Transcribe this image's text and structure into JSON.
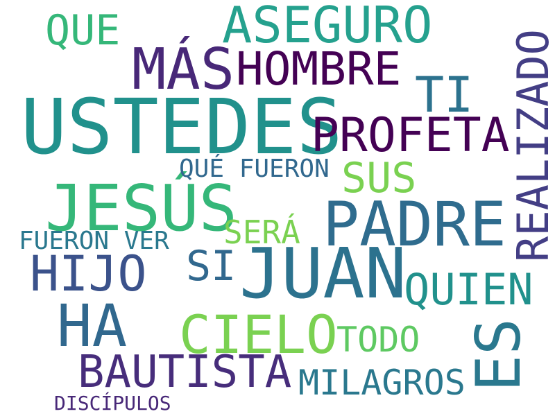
{
  "words": [
    {
      "text": "USTEDES",
      "color": "#21918c"
    },
    {
      "text": "JUAN",
      "color": "#2c728e"
    },
    {
      "text": "JESÚS",
      "color": "#35b779"
    },
    {
      "text": "PADRE",
      "color": "#2f6c8e"
    },
    {
      "text": "ES",
      "color": "#2a788e"
    },
    {
      "text": "MÁS",
      "color": "#482878"
    },
    {
      "text": "ASEGURO",
      "color": "#25a18e"
    },
    {
      "text": "HA",
      "color": "#31688e"
    },
    {
      "text": "CIELO",
      "color": "#7ad151"
    },
    {
      "text": "HOMBRE",
      "color": "#440154"
    },
    {
      "text": "REALIZADO",
      "color": "#433e85"
    },
    {
      "text": "PROFETA",
      "color": "#440154"
    },
    {
      "text": "HIJO",
      "color": "#3b528b"
    },
    {
      "text": "TI",
      "color": "#2c728e"
    },
    {
      "text": "BAUTISTA",
      "color": "#472d7b"
    },
    {
      "text": "QUIEN",
      "color": "#21918c"
    },
    {
      "text": "QUE",
      "color": "#35b779"
    },
    {
      "text": "SUS",
      "color": "#7ad151"
    },
    {
      "text": "SI",
      "color": "#31688e"
    },
    {
      "text": "TODO",
      "color": "#5ec962"
    },
    {
      "text": "MILAGROS",
      "color": "#2a788e"
    },
    {
      "text": "SERÁ",
      "color": "#7ad151"
    },
    {
      "text": "QUÉ FUERON",
      "color": "#31688e"
    },
    {
      "text": "FUERON VER",
      "color": "#2a788e"
    },
    {
      "text": "DISCÍPULOS",
      "color": "#482878"
    }
  ]
}
